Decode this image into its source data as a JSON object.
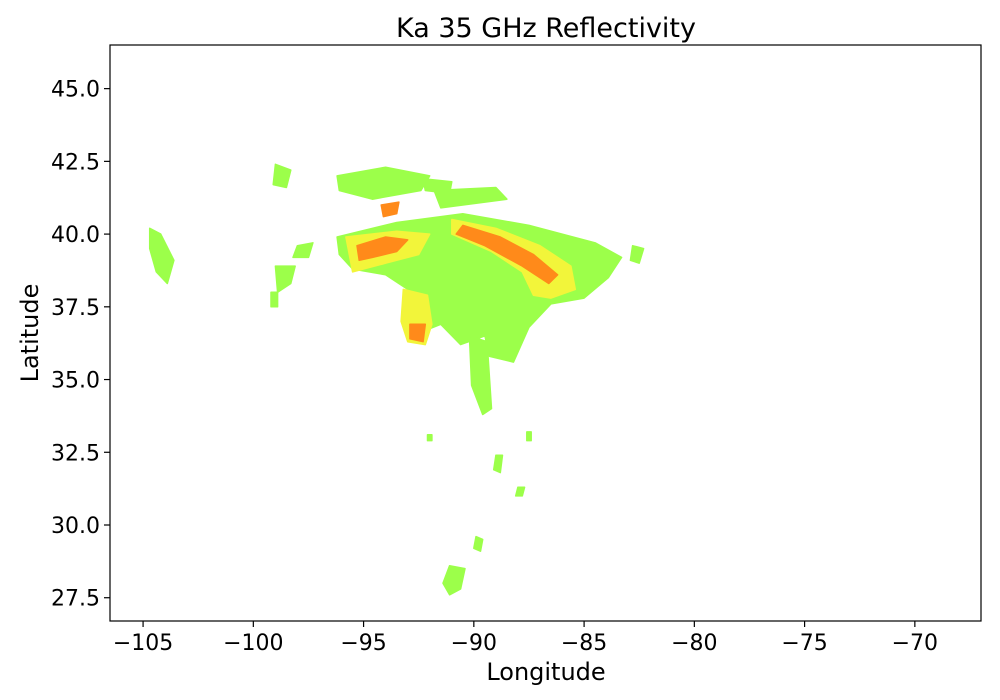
{
  "chart_data": {
    "type": "heatmap",
    "title": "Ka 35 GHz Reflectivity",
    "xlabel": "Longitude",
    "ylabel": "Latitude",
    "xlim": [
      -106.5,
      -67
    ],
    "ylim": [
      26.7,
      46.5
    ],
    "xticks": [
      -105,
      -100,
      -95,
      -90,
      -85,
      -80,
      -75,
      -70
    ],
    "xtick_labels": [
      "−105",
      "−100",
      "−95",
      "−90",
      "−85",
      "−80",
      "−75",
      "−70"
    ],
    "yticks": [
      27.5,
      30.0,
      32.5,
      35.0,
      37.5,
      40.0,
      42.5,
      45.0
    ],
    "ytick_labels": [
      "27.5",
      "30.0",
      "32.5",
      "35.0",
      "37.5",
      "40.0",
      "42.5",
      "45.0"
    ],
    "grid": false,
    "colors": {
      "low": "#9cff4a",
      "mid": "#f2f53a",
      "high": "#ff8a1a",
      "peak": "#f03a10"
    },
    "echo_regions": [
      {
        "name": "main-band",
        "level": "low",
        "points": [
          [
            -96.2,
            39.9
          ],
          [
            -93.5,
            40.4
          ],
          [
            -90.5,
            40.7
          ],
          [
            -87.5,
            40.3
          ],
          [
            -84.5,
            39.7
          ],
          [
            -83.3,
            39.2
          ],
          [
            -83.9,
            38.5
          ],
          [
            -85.0,
            37.8
          ],
          [
            -86.5,
            37.6
          ],
          [
            -87.5,
            36.8
          ],
          [
            -88.2,
            35.6
          ],
          [
            -89.3,
            35.8
          ],
          [
            -89.5,
            36.5
          ],
          [
            -90.6,
            36.2
          ],
          [
            -91.5,
            36.9
          ],
          [
            -92.5,
            36.6
          ],
          [
            -92.8,
            38.0
          ],
          [
            -94.0,
            38.6
          ],
          [
            -95.5,
            38.8
          ],
          [
            -96.1,
            39.3
          ]
        ]
      },
      {
        "name": "arc-band",
        "level": "mid",
        "points": [
          [
            -91.0,
            40.5
          ],
          [
            -89.0,
            40.2
          ],
          [
            -87.0,
            39.6
          ],
          [
            -85.6,
            38.9
          ],
          [
            -85.4,
            38.1
          ],
          [
            -86.5,
            37.8
          ],
          [
            -87.3,
            37.9
          ],
          [
            -87.8,
            38.7
          ],
          [
            -89.2,
            39.4
          ],
          [
            -91.0,
            40.0
          ]
        ]
      },
      {
        "name": "arc-core",
        "level": "high",
        "points": [
          [
            -90.5,
            40.3
          ],
          [
            -88.8,
            39.9
          ],
          [
            -87.3,
            39.3
          ],
          [
            -86.2,
            38.6
          ],
          [
            -86.6,
            38.3
          ],
          [
            -87.8,
            38.9
          ],
          [
            -89.5,
            39.6
          ],
          [
            -90.8,
            40.0
          ]
        ]
      },
      {
        "name": "west-cluster",
        "level": "mid",
        "points": [
          [
            -95.8,
            39.9
          ],
          [
            -93.5,
            40.1
          ],
          [
            -92.0,
            40.0
          ],
          [
            -92.5,
            39.3
          ],
          [
            -94.0,
            39.0
          ],
          [
            -95.5,
            38.7
          ]
        ]
      },
      {
        "name": "west-core",
        "level": "high",
        "points": [
          [
            -95.3,
            39.6
          ],
          [
            -94.0,
            39.9
          ],
          [
            -93.0,
            39.8
          ],
          [
            -93.5,
            39.4
          ],
          [
            -94.6,
            39.2
          ],
          [
            -95.2,
            39.1
          ]
        ]
      },
      {
        "name": "south-cell",
        "level": "mid",
        "points": [
          [
            -93.2,
            38.1
          ],
          [
            -92.1,
            37.9
          ],
          [
            -91.9,
            36.9
          ],
          [
            -92.2,
            36.2
          ],
          [
            -93.0,
            36.3
          ],
          [
            -93.3,
            37.0
          ]
        ]
      },
      {
        "name": "south-core",
        "level": "high",
        "points": [
          [
            -92.9,
            36.9
          ],
          [
            -92.2,
            36.9
          ],
          [
            -92.3,
            36.3
          ],
          [
            -92.9,
            36.4
          ]
        ]
      },
      {
        "name": "tail-south",
        "level": "low",
        "points": [
          [
            -90.2,
            36.5
          ],
          [
            -89.4,
            36.3
          ],
          [
            -89.2,
            34.0
          ],
          [
            -89.6,
            33.8
          ],
          [
            -90.1,
            34.8
          ]
        ]
      },
      {
        "name": "far-west",
        "level": "low",
        "points": [
          [
            -104.7,
            40.2
          ],
          [
            -104.2,
            40.0
          ],
          [
            -103.6,
            39.1
          ],
          [
            -103.9,
            38.3
          ],
          [
            -104.4,
            38.7
          ],
          [
            -104.7,
            39.5
          ]
        ]
      },
      {
        "name": "west-mid",
        "level": "low",
        "points": [
          [
            -99.0,
            38.9
          ],
          [
            -98.1,
            38.9
          ],
          [
            -98.3,
            38.3
          ],
          [
            -98.9,
            38.0
          ]
        ]
      },
      {
        "name": "nw-scatter",
        "level": "low",
        "points": [
          [
            -98.0,
            39.6
          ],
          [
            -97.3,
            39.7
          ],
          [
            -97.5,
            39.2
          ],
          [
            -98.2,
            39.2
          ]
        ]
      },
      {
        "name": "north-1",
        "level": "low",
        "points": [
          [
            -99.0,
            42.4
          ],
          [
            -98.3,
            42.2
          ],
          [
            -98.5,
            41.6
          ],
          [
            -99.1,
            41.7
          ]
        ]
      },
      {
        "name": "north-2",
        "level": "low",
        "points": [
          [
            -96.2,
            42.0
          ],
          [
            -94.0,
            42.3
          ],
          [
            -92.0,
            42.0
          ],
          [
            -92.4,
            41.5
          ],
          [
            -94.6,
            41.2
          ],
          [
            -96.1,
            41.5
          ]
        ]
      },
      {
        "name": "north-3",
        "level": "low",
        "points": [
          [
            -91.8,
            41.5
          ],
          [
            -89.0,
            41.6
          ],
          [
            -88.5,
            41.2
          ],
          [
            -91.5,
            40.9
          ]
        ]
      },
      {
        "name": "north-4",
        "level": "low",
        "points": [
          [
            -92.3,
            41.9
          ],
          [
            -91.0,
            41.8
          ],
          [
            -91.1,
            41.4
          ],
          [
            -92.2,
            41.5
          ]
        ]
      },
      {
        "name": "north-core",
        "level": "high",
        "points": [
          [
            -94.2,
            41.0
          ],
          [
            -93.4,
            41.1
          ],
          [
            -93.5,
            40.7
          ],
          [
            -94.1,
            40.6
          ]
        ]
      },
      {
        "name": "gulf-1",
        "level": "low",
        "points": [
          [
            -91.1,
            28.6
          ],
          [
            -90.4,
            28.5
          ],
          [
            -90.6,
            27.8
          ],
          [
            -91.1,
            27.6
          ],
          [
            -91.4,
            28.0
          ]
        ]
      },
      {
        "name": "gulf-2",
        "level": "low",
        "points": [
          [
            -89.9,
            29.6
          ],
          [
            -89.6,
            29.5
          ],
          [
            -89.7,
            29.1
          ],
          [
            -90.0,
            29.2
          ]
        ]
      },
      {
        "name": "gulf-3",
        "level": "low",
        "points": [
          [
            -88.0,
            31.3
          ],
          [
            -87.7,
            31.3
          ],
          [
            -87.8,
            31.0
          ],
          [
            -88.1,
            31.0
          ]
        ]
      },
      {
        "name": "gulf-4",
        "level": "low",
        "points": [
          [
            -89.0,
            32.4
          ],
          [
            -88.7,
            32.4
          ],
          [
            -88.8,
            31.8
          ],
          [
            -89.1,
            31.9
          ]
        ]
      },
      {
        "name": "east-edge",
        "level": "low",
        "points": [
          [
            -82.8,
            39.6
          ],
          [
            -82.3,
            39.5
          ],
          [
            -82.5,
            39.0
          ],
          [
            -82.9,
            39.1
          ]
        ]
      },
      {
        "name": "speck-1",
        "level": "low",
        "points": [
          [
            -92.1,
            33.1
          ],
          [
            -91.9,
            33.1
          ],
          [
            -91.9,
            32.9
          ],
          [
            -92.1,
            32.9
          ]
        ]
      },
      {
        "name": "speck-2",
        "level": "low",
        "points": [
          [
            -87.6,
            33.2
          ],
          [
            -87.4,
            33.2
          ],
          [
            -87.4,
            32.9
          ],
          [
            -87.6,
            32.9
          ]
        ]
      },
      {
        "name": "speck-3",
        "level": "low",
        "points": [
          [
            -99.2,
            38.0
          ],
          [
            -98.9,
            38.0
          ],
          [
            -98.9,
            37.5
          ],
          [
            -99.2,
            37.5
          ]
        ]
      }
    ]
  }
}
